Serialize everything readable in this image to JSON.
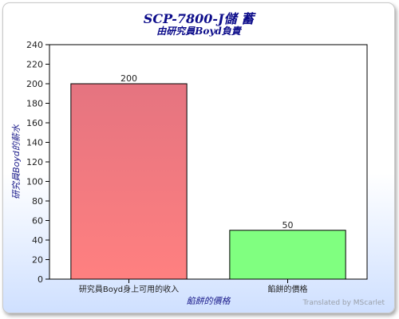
{
  "chart_data": {
    "type": "bar",
    "title": "SCP-7800-J儲 蓄",
    "subtitle": "由研究員Boyd負責",
    "xlabel": "餡餅的價格",
    "ylabel": "研究員Boyd的薪水",
    "categories": [
      "研究員Boyd身上可用的收入",
      "餡餅的價格"
    ],
    "values": [
      200,
      50
    ],
    "data_labels": [
      "200",
      "50"
    ],
    "bar_colors": [
      "#ff7b7b",
      "#80ff80"
    ],
    "ylim": [
      0,
      240
    ],
    "yticks": [
      0,
      20,
      40,
      60,
      80,
      100,
      120,
      140,
      160,
      180,
      200,
      220,
      240
    ],
    "grid": false,
    "legend": "none"
  },
  "credit": "Translated by MScarlet"
}
